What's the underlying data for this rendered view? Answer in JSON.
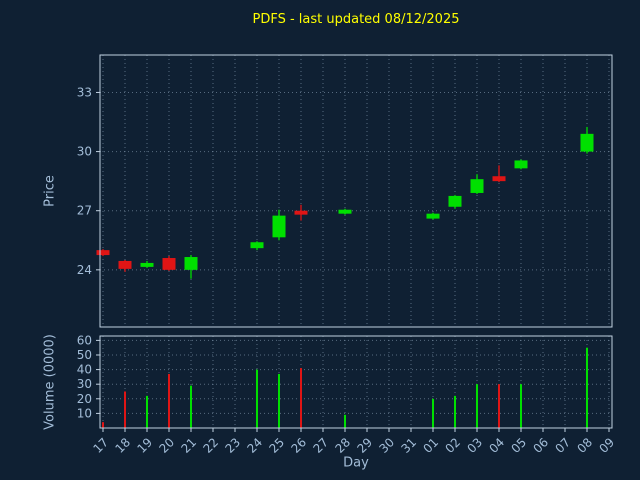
{
  "chart_data": {
    "type": "candlestick",
    "title": "PDFS - last updated 08/12/2025",
    "xlabel": "Day",
    "ylabel_price": "Price",
    "ylabel_volume": "Volume (0000)",
    "x_ticklabels": [
      "17",
      "18",
      "19",
      "20",
      "21",
      "22",
      "23",
      "24",
      "25",
      "26",
      "27",
      "28",
      "29",
      "30",
      "31",
      "01",
      "02",
      "03",
      "04",
      "05",
      "06",
      "07",
      "08",
      "09"
    ],
    "price_yticks": [
      24,
      27,
      30,
      33
    ],
    "price_ylim": [
      21.1,
      34.9
    ],
    "volume_yticks": [
      10,
      20,
      30,
      40,
      50,
      60
    ],
    "volume_ylim": [
      0,
      63
    ],
    "grid": "dotted",
    "legend": "none",
    "colors": {
      "background": "#0f2033",
      "up": "#00e000",
      "down": "#e01515",
      "title": "#ffff00",
      "text": "#a3bdd8",
      "grid": "#93a9c0",
      "frame": "#c2d2e2"
    },
    "candles": [
      {
        "x": "17",
        "open": 25.0,
        "high": 25.05,
        "low": 24.7,
        "close": 24.75,
        "volume": 4
      },
      {
        "x": "18",
        "open": 24.45,
        "high": 24.5,
        "low": 23.9,
        "close": 24.05,
        "volume": 25
      },
      {
        "x": "19",
        "open": 24.15,
        "high": 24.45,
        "low": 24.1,
        "close": 24.35,
        "volume": 22
      },
      {
        "x": "20",
        "open": 24.6,
        "high": 24.7,
        "low": 23.95,
        "close": 24.0,
        "volume": 37
      },
      {
        "x": "21",
        "open": 24.0,
        "high": 24.75,
        "low": 23.55,
        "close": 24.65,
        "volume": 29
      },
      {
        "x": "24",
        "open": 25.1,
        "high": 25.45,
        "low": 25.0,
        "close": 25.4,
        "volume": 40
      },
      {
        "x": "25",
        "open": 25.65,
        "high": 27.05,
        "low": 25.5,
        "close": 26.75,
        "volume": 37
      },
      {
        "x": "26",
        "open": 27.0,
        "high": 27.3,
        "low": 26.5,
        "close": 26.8,
        "volume": 41
      },
      {
        "x": "28",
        "open": 26.85,
        "high": 27.1,
        "low": 26.8,
        "close": 27.05,
        "volume": 9
      },
      {
        "x": "01",
        "open": 26.6,
        "high": 26.9,
        "low": 26.55,
        "close": 26.85,
        "volume": 20
      },
      {
        "x": "02",
        "open": 27.2,
        "high": 27.8,
        "low": 27.1,
        "close": 27.75,
        "volume": 22
      },
      {
        "x": "03",
        "open": 27.9,
        "high": 28.85,
        "low": 27.85,
        "close": 28.6,
        "volume": 30
      },
      {
        "x": "04",
        "open": 28.75,
        "high": 29.3,
        "low": 28.45,
        "close": 28.5,
        "volume": 30
      },
      {
        "x": "05",
        "open": 29.15,
        "high": 29.6,
        "low": 29.1,
        "close": 29.55,
        "volume": 30
      },
      {
        "x": "08",
        "open": 30.0,
        "high": 31.25,
        "low": 29.9,
        "close": 30.9,
        "volume": 55
      }
    ]
  }
}
